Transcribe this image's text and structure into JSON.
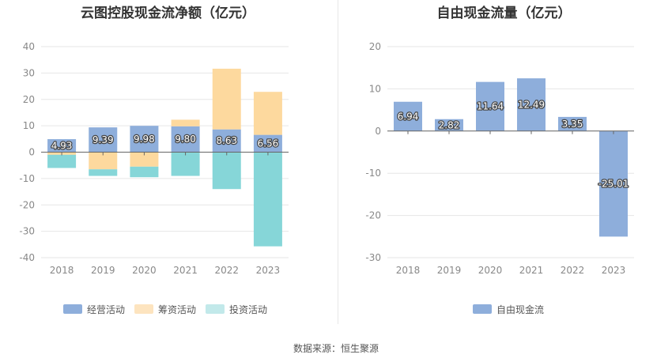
{
  "chart_data": [
    {
      "type": "bar",
      "stacked": true,
      "title": "云图控股现金流净额（亿元）",
      "categories": [
        "2018",
        "2019",
        "2020",
        "2021",
        "2022",
        "2023"
      ],
      "series": [
        {
          "name": "经营活动",
          "color": "#8eaedb",
          "values": [
            4.93,
            9.39,
            9.98,
            9.8,
            8.63,
            6.56
          ]
        },
        {
          "name": "筹资活动",
          "color": "#fdd99e",
          "values": [
            -1.0,
            -6.5,
            -5.5,
            2.5,
            23.0,
            16.3
          ]
        },
        {
          "name": "投资活动",
          "color": "#86d6d8",
          "values": [
            -5.0,
            -2.5,
            -4.0,
            -9.0,
            -14.0,
            -35.7
          ]
        }
      ],
      "data_labels": [
        "4.93",
        "9.39",
        "9.98",
        "9.80",
        "8.63",
        "6.56"
      ],
      "ylim": [
        -40,
        40
      ],
      "yticks": [
        "40",
        "30",
        "20",
        "10",
        "0",
        "-10",
        "-20",
        "-30",
        "-40"
      ],
      "ytick_values": [
        40,
        30,
        20,
        10,
        0,
        -10,
        -20,
        -30,
        -40
      ],
      "legend": [
        "经营活动",
        "筹资活动",
        "投资活动"
      ],
      "legend_colors": [
        "#8eaedb",
        "#fde4bf",
        "#c2e9ea"
      ],
      "legend_position": "bottom",
      "grid": true
    },
    {
      "type": "bar",
      "title": "自由现金流量（亿元）",
      "categories": [
        "2018",
        "2019",
        "2020",
        "2021",
        "2022",
        "2023"
      ],
      "series": [
        {
          "name": "自由现金流",
          "color": "#8eaedb",
          "values": [
            6.94,
            2.82,
            11.64,
            12.49,
            3.35,
            -25.01
          ]
        }
      ],
      "data_labels": [
        "6.94",
        "2.82",
        "11.64",
        "12.49",
        "3.35",
        "-25.01"
      ],
      "ylim": [
        -30,
        20
      ],
      "yticks": [
        "20",
        "10",
        "0",
        "-10",
        "-20",
        "-30"
      ],
      "ytick_values": [
        20,
        10,
        0,
        -10,
        -20,
        -30
      ],
      "legend": [
        "自由现金流"
      ],
      "legend_colors": [
        "#8eaedb"
      ],
      "legend_position": "bottom",
      "grid": true
    }
  ],
  "footer": {
    "source": "数据来源：恒生聚源"
  }
}
